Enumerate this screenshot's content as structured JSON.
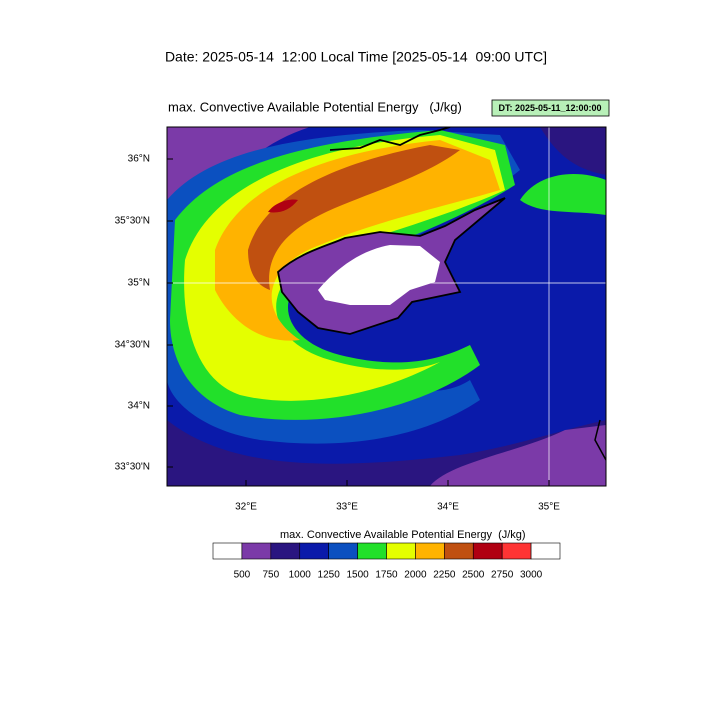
{
  "header": {
    "title": "Date: 2025-05-14  12:00 Local Time [2025-05-14  09:00 UTC]"
  },
  "map": {
    "title": "max. Convective Available Potential Energy   (J/kg)",
    "run_label": "DT: 2025-05-11_12:00:00",
    "lat_labels": [
      "36°N",
      "35°30'N",
      "35°N",
      "34°30'N",
      "34°N",
      "33°30'N"
    ],
    "lon_labels": [
      "32°E",
      "33°E",
      "34°E",
      "35°E"
    ]
  },
  "colorbar": {
    "title": "max. Convective Available Potential Energy  (J/kg)",
    "levels": [
      500,
      750,
      1000,
      1250,
      1500,
      1750,
      2000,
      2250,
      2500,
      2750,
      3000
    ],
    "colors": [
      "#ffffff",
      "#7b3aa8",
      "#2a1580",
      "#0a1aaa",
      "#0b50c0",
      "#22e02a",
      "#e4ff00",
      "#ffb300",
      "#c05010",
      "#b00012",
      "#ff3434",
      "#ffffff"
    ]
  }
}
